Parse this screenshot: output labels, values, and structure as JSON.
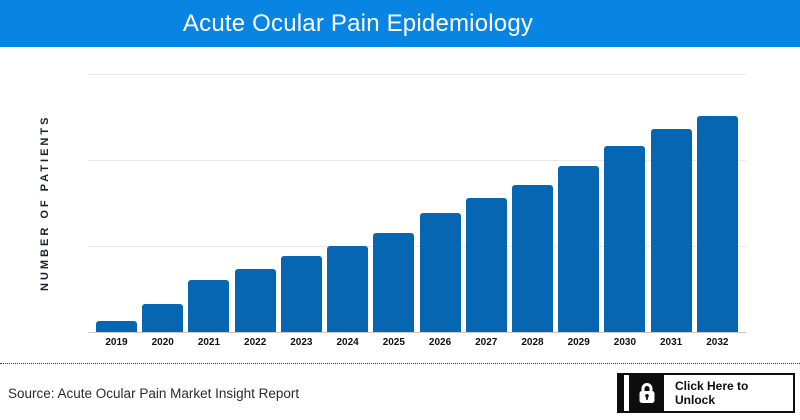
{
  "header": {
    "title": "Acute Ocular Pain Epidemiology"
  },
  "chart_data": {
    "type": "bar",
    "title": "Acute Ocular Pain Epidemiology",
    "xlabel": "",
    "ylabel": "NUMBER OF PATIENTS",
    "categories": [
      "2019",
      "2020",
      "2021",
      "2022",
      "2023",
      "2024",
      "2025",
      "2026",
      "2027",
      "2028",
      "2029",
      "2030",
      "2031",
      "2032"
    ],
    "values_relative_pct_of_max": [
      5,
      13,
      24,
      29,
      35,
      40,
      46,
      55,
      62,
      68,
      77,
      86,
      94,
      100
    ],
    "value_labels_visible": false,
    "y_tick_labels_visible": false,
    "gridlines": "horizontal",
    "legend": "none",
    "bar_color": "#0666b2"
  },
  "colors": {
    "header_blue": "#0885e2",
    "bar_blue": "#0666b2"
  },
  "footer": {
    "source": "Source: Acute Ocular Pain Market Insight Report",
    "unlock": {
      "label": "Click Here to Unlock",
      "icon": "lock-icon"
    }
  }
}
